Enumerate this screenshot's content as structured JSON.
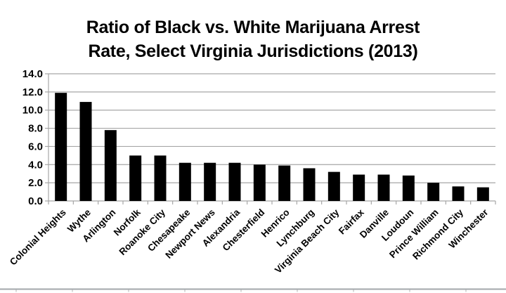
{
  "page": {
    "background": "#ffffff"
  },
  "title": {
    "line1": "Ratio of Black vs. White Marijuana Arrest",
    "line2": "Rate, Select Virginia Jurisdictions (2013)"
  },
  "chart_data": {
    "type": "bar",
    "title": "Ratio of Black vs. White Marijuana Arrest Rate, Select Virginia Jurisdictions (2013)",
    "categories": [
      "Colonial Heights",
      "Wythe",
      "Arlington",
      "Norfolk",
      "Roanoke City",
      "Chesapeake",
      "Newport News",
      "Alexandria",
      "Chesterfield",
      "Henrico",
      "Lynchburg",
      "Virginia Beach City",
      "Fairfax",
      "Danville",
      "Loudoun",
      "Prince William",
      "Richmond City",
      "Winchester"
    ],
    "values": [
      11.9,
      10.9,
      7.8,
      5.0,
      5.0,
      4.2,
      4.2,
      4.2,
      4.0,
      3.9,
      3.6,
      3.2,
      2.9,
      2.9,
      2.8,
      2.0,
      1.6,
      1.5
    ],
    "xlabel": "",
    "ylabel": "",
    "ylim": [
      0,
      14
    ],
    "ytick_step": 2,
    "ytick_labels": [
      "0.0",
      "2.0",
      "4.0",
      "6.0",
      "8.0",
      "10.0",
      "12.0",
      "14.0"
    ],
    "grid": true,
    "legend_position": "none",
    "bar_color": "#000000",
    "grid_color": "#a6a6a6",
    "axis_color": "#a6a6a6",
    "text_color": "#000000",
    "xlabel_rotation_deg": -45
  },
  "bottom_strip": {
    "description": "top edge of cropped element below chart",
    "line_color": "#a3a7ab",
    "tick_color": "#b3b3b3",
    "tick_start_x": 23,
    "tick_spacing": 80,
    "tick_count": 9
  }
}
